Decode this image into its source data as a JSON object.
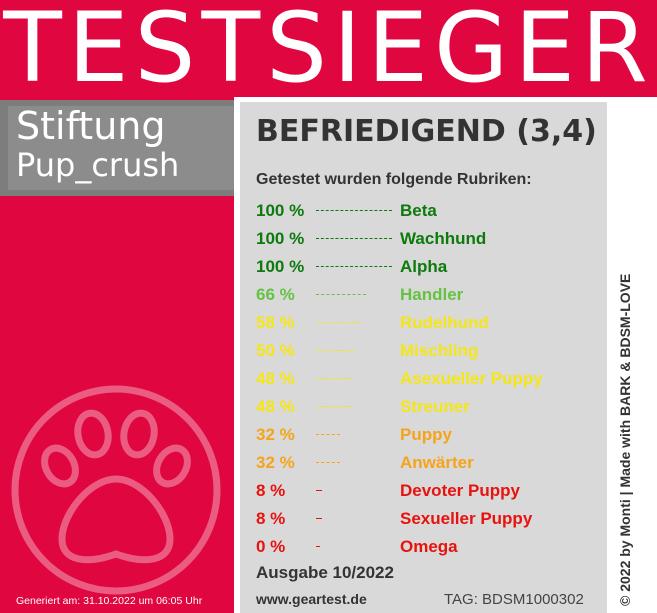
{
  "banner": {
    "title": "TESTSIEGER"
  },
  "brand": {
    "line1": "Stiftung",
    "line2": "Pup_crush"
  },
  "rating": {
    "text": "BEFRIEDIGEND (3,4)"
  },
  "intro": "Getestet wurden folgende Rubriken:",
  "categories": [
    {
      "pct": "100 %",
      "value": 100,
      "name": "Beta",
      "color": "#0d7a0d"
    },
    {
      "pct": "100 %",
      "value": 100,
      "name": "Wachhund",
      "color": "#0d7a0d"
    },
    {
      "pct": "100 %",
      "value": 100,
      "name": "Alpha",
      "color": "#0d7a0d"
    },
    {
      "pct": "66 %",
      "value": 66,
      "name": "Handler",
      "color": "#66c242"
    },
    {
      "pct": "58 %",
      "value": 58,
      "name": "Rudelhund",
      "color": "#f5e617"
    },
    {
      "pct": "50 %",
      "value": 50,
      "name": "Mischling",
      "color": "#f5e617"
    },
    {
      "pct": "48 %",
      "value": 48,
      "name": "Asexueller Puppy",
      "color": "#f5e617"
    },
    {
      "pct": "48 %",
      "value": 48,
      "name": "Streuner",
      "color": "#f5e617"
    },
    {
      "pct": "32 %",
      "value": 32,
      "name": "Puppy",
      "color": "#f5a41a"
    },
    {
      "pct": "32 %",
      "value": 32,
      "name": "Anwärter",
      "color": "#f5a41a"
    },
    {
      "pct": "8 %",
      "value": 8,
      "name": "Devoter Puppy",
      "color": "#e8120e"
    },
    {
      "pct": "8 %",
      "value": 8,
      "name": "Sexueller Puppy",
      "color": "#e8120e"
    },
    {
      "pct": "0 %",
      "value": 0,
      "name": "Omega",
      "color": "#e8120e"
    }
  ],
  "issue": "Ausgabe 10/2022",
  "website": "www.geartest.de",
  "tag": "TAG: BDSM1000302",
  "credit": "© 2022 by Monti | Made with BARK & BDSM-LOVE",
  "generated": "Generiert am: 31.10.2022 um 06:05 Uhr",
  "paw_icon": "paw-icon",
  "colors": {
    "accent": "#e0063f",
    "panel": "#d9d9d9",
    "brand_box": "#8c8c8c"
  }
}
